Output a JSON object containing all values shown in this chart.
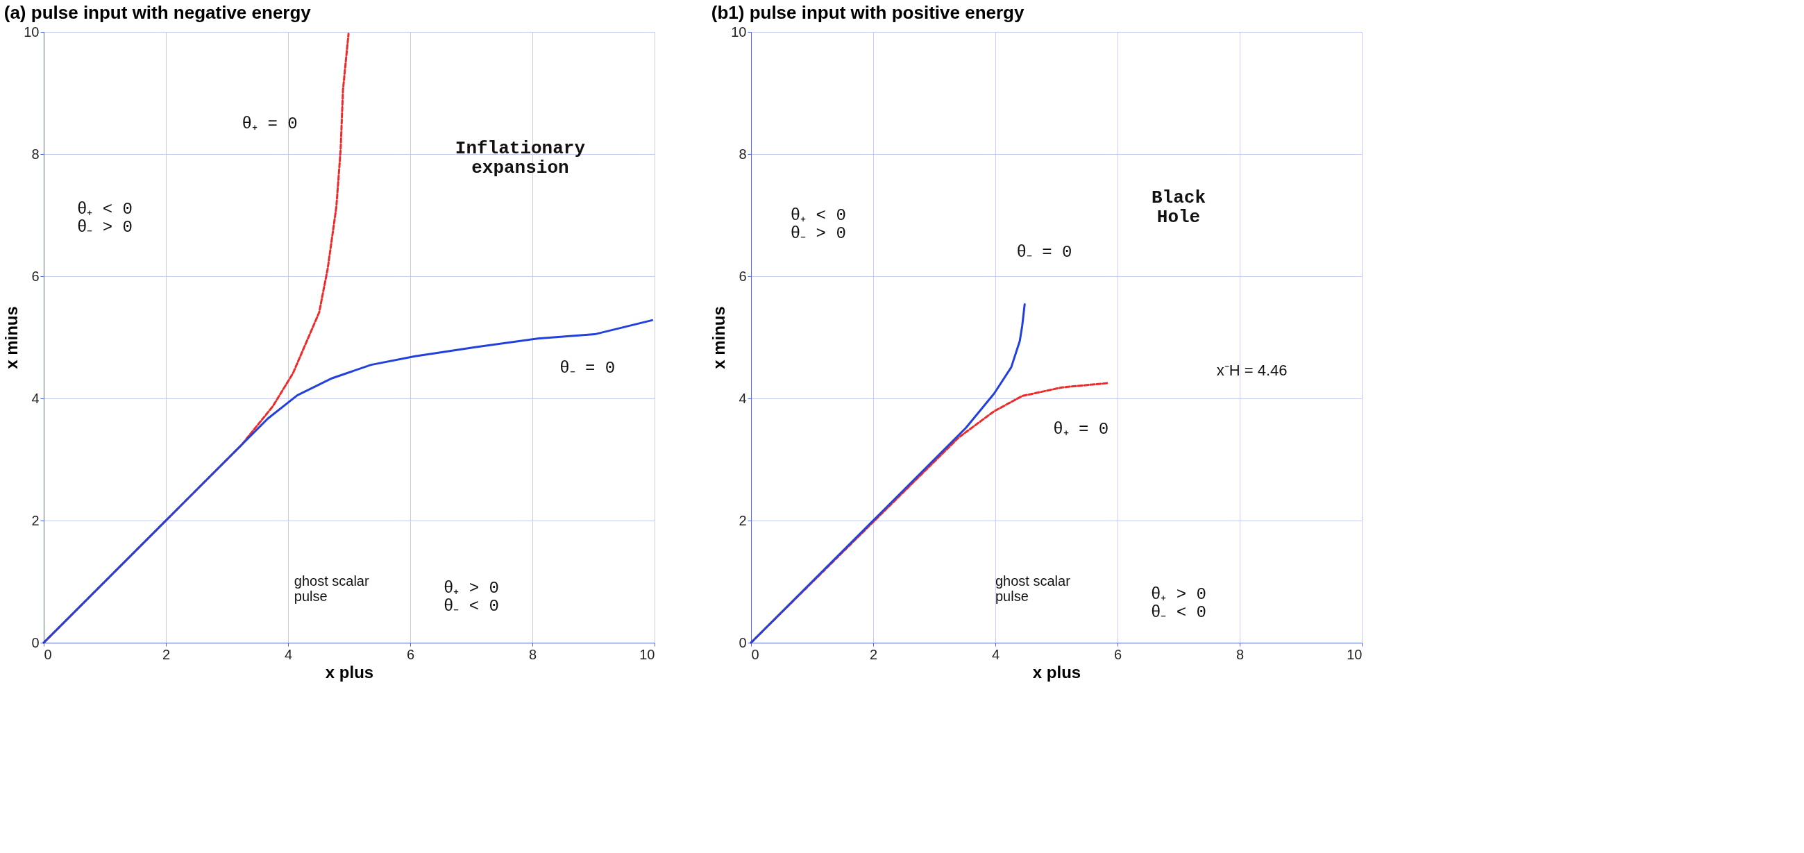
{
  "chart_data": [
    {
      "type": "line",
      "title": "(a) pulse input with negative energy",
      "xlabel": "x plus",
      "ylabel": "x minus",
      "xlim": [
        0,
        10
      ],
      "ylim": [
        0,
        10
      ],
      "xticks": [
        0,
        2,
        4,
        6,
        8,
        10
      ],
      "yticks": [
        0,
        2,
        4,
        6,
        8,
        10
      ],
      "grid": true,
      "series": [
        {
          "color": "#ee2a2a",
          "line_style": "dashed",
          "x": [
            0,
            3.24,
            3.75,
            4.08,
            4.51,
            4.65,
            4.79,
            4.86,
            4.9,
            4.99
          ],
          "values": [
            0,
            3.24,
            3.87,
            4.41,
            5.41,
            6.13,
            7.13,
            8.06,
            9.06,
            9.97
          ]
        },
        {
          "color": "#2240dd",
          "line_style": "solid",
          "x": [
            0,
            3.67,
            4.15,
            4.72,
            5.36,
            6.08,
            7.08,
            8.09,
            9.02,
            9.96
          ],
          "values": [
            0,
            3.67,
            4.05,
            4.33,
            4.55,
            4.69,
            4.84,
            4.98,
            5.05,
            5.28
          ]
        }
      ],
      "annotations": [
        "Inflationary\nexpansion",
        "θ₊ = 0",
        "θ₋ = 0",
        "θ₊ < 0\nθ₋ > 0",
        "θ₊ > 0\nθ₋ < 0",
        "ghost scalar\npulse"
      ]
    },
    {
      "type": "line",
      "title": "(b1) pulse input with positive energy",
      "xlabel": "x plus",
      "ylabel": "x minus",
      "xlim": [
        0,
        10
      ],
      "ylim": [
        0,
        10
      ],
      "xticks": [
        0,
        2,
        4,
        6,
        8,
        10
      ],
      "yticks": [
        0,
        2,
        4,
        6,
        8,
        10
      ],
      "grid": true,
      "series": [
        {
          "color": "#ee2a2a",
          "line_style": "dashed",
          "x": [
            0,
            3.4,
            3.98,
            4.44,
            5.09,
            5.84
          ],
          "values": [
            0,
            3.36,
            3.79,
            4.04,
            4.18,
            4.25
          ]
        },
        {
          "color": "#2240dd",
          "line_style": "solid",
          "x": [
            0,
            3.52,
            3.98,
            4.26,
            4.4,
            4.44,
            4.48
          ],
          "values": [
            0,
            3.52,
            4.08,
            4.51,
            4.94,
            5.19,
            5.54
          ]
        }
      ],
      "annotations": [
        "Black\nHole",
        "θ₋ = 0",
        "θ₊ = 0",
        "x⁻H = 4.46",
        "θ₊ < 0\nθ₋ > 0",
        "θ₊ > 0\nθ₋ < 0",
        "ghost scalar\npulse"
      ]
    }
  ]
}
